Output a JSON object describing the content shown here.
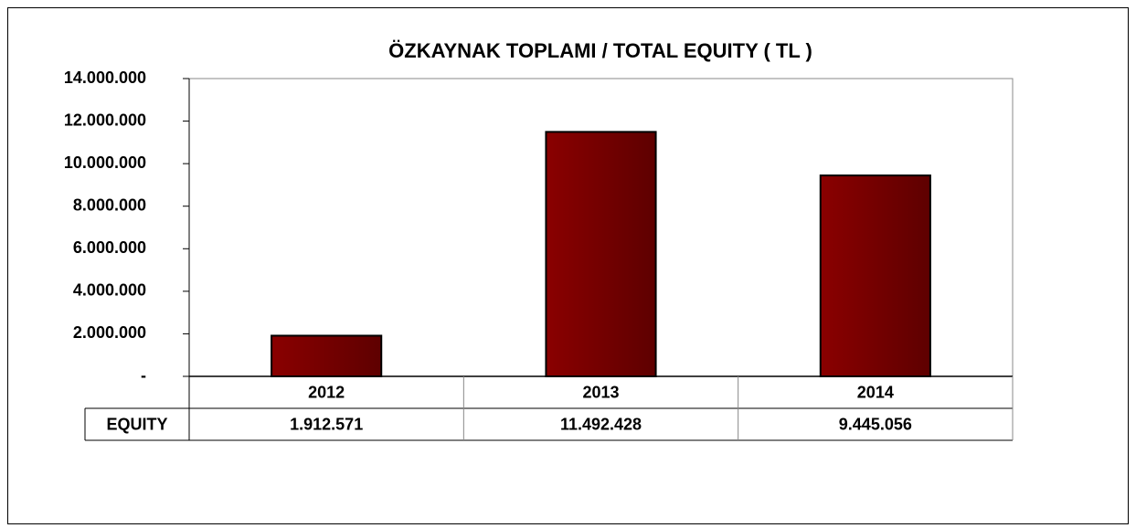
{
  "chart_data": {
    "type": "bar",
    "title": "ÖZKAYNAK TOPLAMI / TOTAL EQUITY ( TL )",
    "categories": [
      "2012",
      "2013",
      "2014"
    ],
    "series": [
      {
        "name": "EQUITY",
        "color": "#7b0000",
        "values": [
          1912571,
          11492428,
          9445056
        ],
        "value_labels": [
          "1.912.571",
          "11.492.428",
          "9.445.056"
        ]
      }
    ],
    "ylim": [
      0,
      14000000
    ],
    "yticks": [
      {
        "value": 0,
        "label": "-"
      },
      {
        "value": 2000000,
        "label": "2.000.000"
      },
      {
        "value": 4000000,
        "label": "4.000.000"
      },
      {
        "value": 6000000,
        "label": "6.000.000"
      },
      {
        "value": 8000000,
        "label": "8.000.000"
      },
      {
        "value": 10000000,
        "label": "10.000.000"
      },
      {
        "value": 12000000,
        "label": "12.000.000"
      },
      {
        "value": 14000000,
        "label": "14.000.000"
      }
    ],
    "grid": false
  }
}
